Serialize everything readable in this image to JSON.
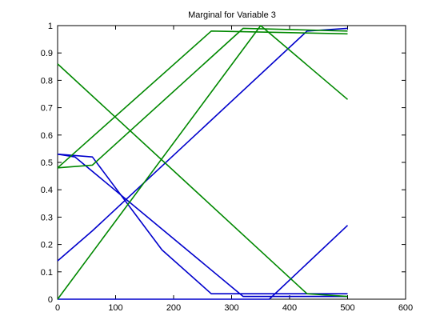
{
  "chart_data": {
    "type": "line",
    "title": "Marginal for Variable 3",
    "xlabel": "",
    "ylabel": "",
    "xlim": [
      0,
      600
    ],
    "ylim": [
      0,
      1
    ],
    "xticks": [
      0,
      100,
      200,
      300,
      400,
      500,
      600
    ],
    "yticks": [
      0,
      0.1,
      0.2,
      0.3,
      0.4,
      0.5,
      0.6,
      0.7,
      0.8,
      0.9,
      1
    ],
    "ytick_labels": [
      "0",
      "0.1",
      "0.2",
      "0.3",
      "0.4",
      "0.5",
      "0.6",
      "0.7",
      "0.8",
      "0.9",
      "1"
    ],
    "grid": false,
    "legend": "none",
    "series": [
      {
        "color": "#0000cc",
        "x": [
          0,
          60,
          430,
          500
        ],
        "y": [
          0.14,
          0.25,
          0.98,
          0.99
        ]
      },
      {
        "color": "#0000cc",
        "x": [
          0,
          60,
          180,
          265,
          320,
          500
        ],
        "y": [
          0.53,
          0.52,
          0.18,
          0.02,
          0.02,
          0.02
        ]
      },
      {
        "color": "#0000cc",
        "x": [
          0,
          30,
          320,
          500
        ],
        "y": [
          0.53,
          0.52,
          0.01,
          0.01
        ]
      },
      {
        "color": "#0000cc",
        "x": [
          0,
          365,
          500
        ],
        "y": [
          0.0,
          0.0,
          0.27
        ]
      },
      {
        "color": "#008800",
        "x": [
          0,
          60,
          320,
          500
        ],
        "y": [
          0.48,
          0.49,
          0.99,
          0.98
        ]
      },
      {
        "color": "#008800",
        "x": [
          0,
          265,
          500
        ],
        "y": [
          0.48,
          0.98,
          0.97
        ]
      },
      {
        "color": "#008800",
        "x": [
          0,
          430,
          500
        ],
        "y": [
          0.86,
          0.02,
          0.01
        ]
      },
      {
        "color": "#008800",
        "x": [
          0,
          350,
          500
        ],
        "y": [
          0.0,
          1.0,
          0.73
        ]
      }
    ]
  }
}
